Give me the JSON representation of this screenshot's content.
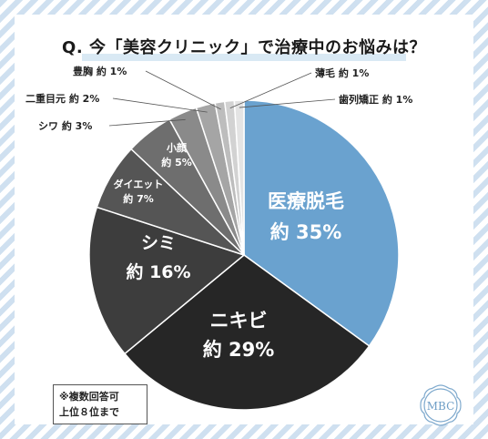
{
  "title": "Q. 今「美容クリニック」で治療中のお悩みは？",
  "note": [
    "※複数回答可",
    "上位８位まで"
  ],
  "logo_text": "MBC",
  "chart_data": {
    "type": "pie",
    "title": "Q. 今「美容クリニック」で治療中のお悩みは？",
    "slices": [
      {
        "label": "医療脱毛",
        "value_text": "約 35%",
        "value": 35,
        "color": "#6aa2cf",
        "text_color": "#ffffff"
      },
      {
        "label": "ニキビ",
        "value_text": "約 29%",
        "value": 29,
        "color": "#262626",
        "text_color": "#ffffff"
      },
      {
        "label": "シミ",
        "value_text": "約 16%",
        "value": 16,
        "color": "#3d3d3d",
        "text_color": "#ffffff"
      },
      {
        "label": "ダイエット",
        "value_text": "約 7%",
        "value": 7,
        "color": "#555555",
        "text_color": "#ffffff"
      },
      {
        "label": "小顔",
        "value_text": "約 5%",
        "value": 5,
        "color": "#6e6e6e",
        "text_color": "#ffffff"
      },
      {
        "label": "シワ",
        "value_text": "約 3%",
        "value": 3,
        "color": "#8a8a8a",
        "text_color": "#222222"
      },
      {
        "label": "二重目元",
        "value_text": "約 2%",
        "value": 2,
        "color": "#a5a5a5",
        "text_color": "#222222"
      },
      {
        "label": "豊胸",
        "value_text": "約 1%",
        "value": 1,
        "color": "#bdbdbd",
        "text_color": "#222222"
      },
      {
        "label": "薄毛",
        "value_text": "約 1%",
        "value": 1,
        "color": "#d2d2d2",
        "text_color": "#222222"
      },
      {
        "label": "歯列矯正",
        "value_text": "約 1%",
        "value": 1,
        "color": "#e4e4e4",
        "text_color": "#222222"
      }
    ]
  }
}
